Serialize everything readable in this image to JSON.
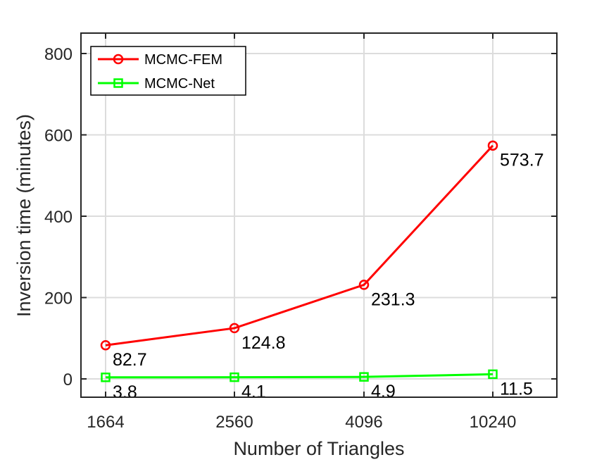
{
  "chart_data": {
    "type": "line",
    "categories": [
      "1664",
      "2560",
      "4096",
      "10240"
    ],
    "series": [
      {
        "name": "MCMC-FEM",
        "values": [
          82.7,
          124.8,
          231.3,
          573.7
        ],
        "labels": [
          "82.7",
          "124.8",
          "231.3",
          "573.7"
        ],
        "color": "#ff0000",
        "marker": "circle"
      },
      {
        "name": "MCMC-Net",
        "values": [
          3.8,
          4.1,
          4.9,
          11.5
        ],
        "labels": [
          "3.8",
          "4.1",
          "4.9",
          "11.5"
        ],
        "color": "#00ff00",
        "marker": "square"
      }
    ],
    "xlabel": "Number of Triangles",
    "ylabel": "Inversion time (minutes)",
    "ylim": [
      -45,
      855
    ],
    "yticks": [
      "0",
      "200",
      "400",
      "600",
      "800"
    ],
    "grid": true,
    "legend_position": "top-left"
  }
}
